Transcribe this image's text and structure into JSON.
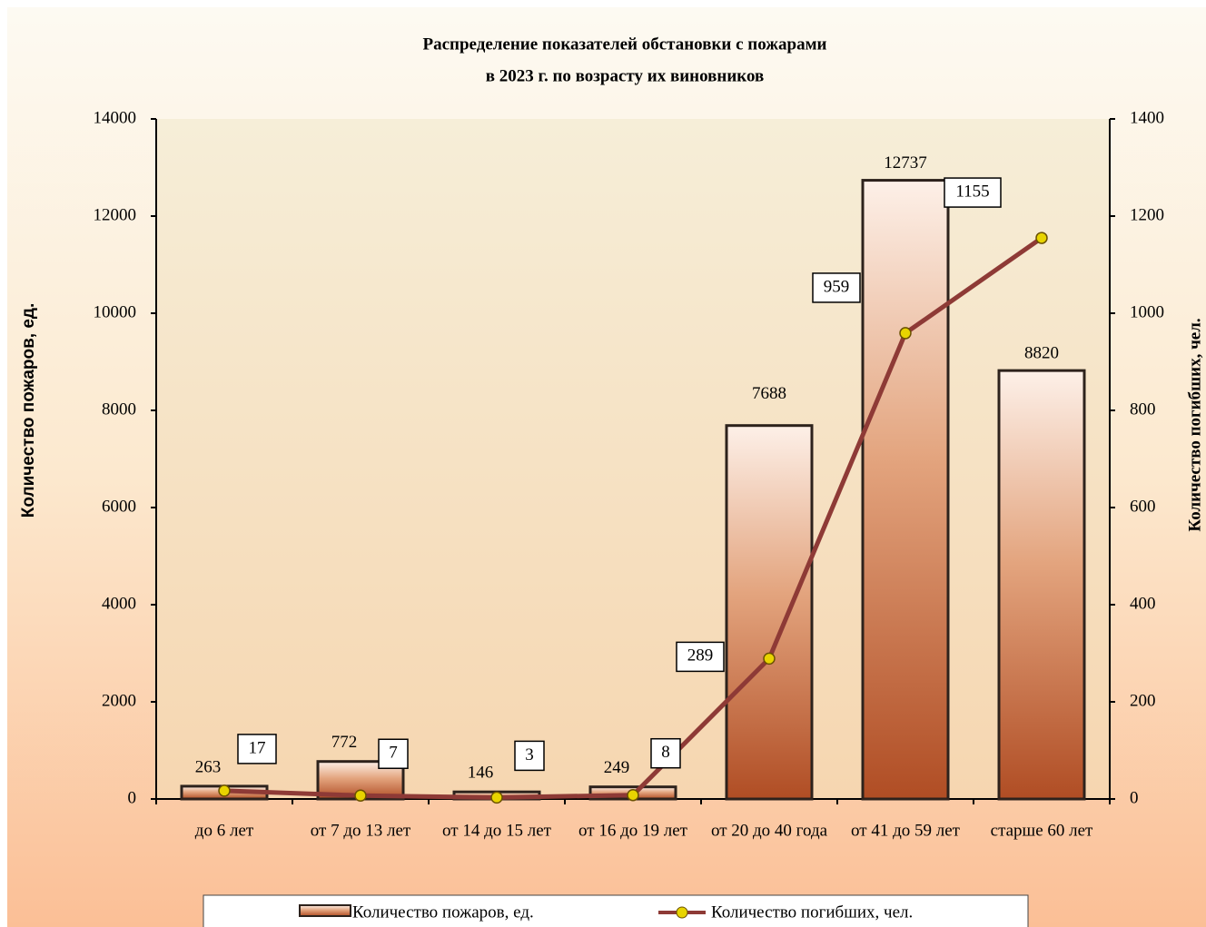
{
  "chart_data": {
    "type": "bar_line",
    "title": [
      "Распределение показателей обстановки с пожарами",
      "в 2023 г. по возрасту их виновников"
    ],
    "ylabel": "Количество пожаров, ед.",
    "y2label": "Количество погибших, чел.",
    "categories": [
      "до 6 лет",
      "от 7 до 13 лет",
      "от 14 до 15 лет",
      "от 16 до 19 лет",
      "от 20 до 40 года",
      "от 41 до 59 лет",
      "старше 60 лет"
    ],
    "series": [
      {
        "name": "Количество пожаров, ед.",
        "type": "bar",
        "color": "#b8552c",
        "values": [
          263,
          772,
          146,
          249,
          7688,
          12737,
          8820
        ]
      },
      {
        "name": "Количество погибших, чел.",
        "type": "line",
        "axis": "y2",
        "color": "#8e3a36",
        "values": [
          17,
          7,
          3,
          8,
          289,
          959,
          1155
        ]
      }
    ],
    "ylim": [
      0,
      14000
    ],
    "yticks": [
      0,
      2000,
      4000,
      6000,
      8000,
      10000,
      12000,
      14000
    ],
    "y2lim": [
      0,
      1400
    ],
    "y2ticks": [
      0,
      200,
      400,
      600,
      800,
      1000,
      1200,
      1400
    ],
    "legend": "bottom"
  }
}
